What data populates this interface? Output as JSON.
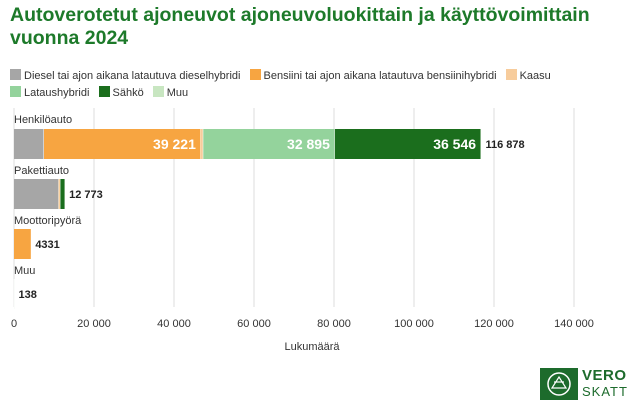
{
  "title": "Autoverotetut ajoneuvot ajoneuvoluokittain ja käyttövoimittain vuonna 2024",
  "legend": [
    {
      "label": "Diesel tai ajon aikana latautuva dieselhybridi",
      "color": "#a6a6a6"
    },
    {
      "label": "Bensiini tai ajon aikana latautuva bensiinihybridi",
      "color": "#f7a541"
    },
    {
      "label": "Kaasu",
      "color": "#f7cc9c"
    },
    {
      "label": "Lataushybridi",
      "color": "#94d39c"
    },
    {
      "label": "Sähkö",
      "color": "#1b6e1d"
    },
    {
      "label": "Muu",
      "color": "#c8e6c1"
    }
  ],
  "chart_data": {
    "type": "bar",
    "orientation": "horizontal",
    "stacked": true,
    "categories": [
      "Henkilöauto",
      "Pakettiauto",
      "Moottoripyörä",
      "Muu"
    ],
    "series": [
      {
        "name": "Diesel tai ajon aikana latautuva dieselhybridi",
        "color": "#a6a6a6",
        "values": [
          7500,
          11200,
          0,
          0
        ]
      },
      {
        "name": "Bensiini tai ajon aikana latautuva bensiinihybridi",
        "color": "#f7a541",
        "values": [
          39221,
          300,
          4331,
          80
        ]
      },
      {
        "name": "Kaasu",
        "color": "#f7cc9c",
        "values": [
          600,
          0,
          0,
          0
        ]
      },
      {
        "name": "Lataushybridi",
        "color": "#94d39c",
        "values": [
          32895,
          100,
          0,
          0
        ]
      },
      {
        "name": "Sähkö",
        "color": "#1b6e1d",
        "values": [
          36546,
          1173,
          0,
          58
        ]
      },
      {
        "name": "Muu",
        "color": "#c8e6c1",
        "values": [
          116,
          0,
          0,
          0
        ]
      }
    ],
    "segment_labels": [
      {
        "category": "Henkilöauto",
        "series": "Bensiini tai ajon aikana latautuva bensiinihybridi",
        "text": "39 221"
      },
      {
        "category": "Henkilöauto",
        "series": "Lataushybridi",
        "text": "32 895"
      },
      {
        "category": "Henkilöauto",
        "series": "Sähkö",
        "text": "36 546"
      }
    ],
    "totals": [
      "116 878",
      "12 773",
      "4331",
      "138"
    ],
    "xlabel": "Lukumäärä",
    "xlim": [
      0,
      150000
    ],
    "xticks": [
      0,
      20000,
      40000,
      60000,
      80000,
      100000,
      120000,
      140000
    ],
    "xtick_labels": [
      "0",
      "20 000",
      "40 000",
      "60 000",
      "80 000",
      "100 000",
      "120 000",
      "140 000"
    ],
    "grid": true
  },
  "logo": {
    "line1": "VERO",
    "line2": "SKATT"
  }
}
